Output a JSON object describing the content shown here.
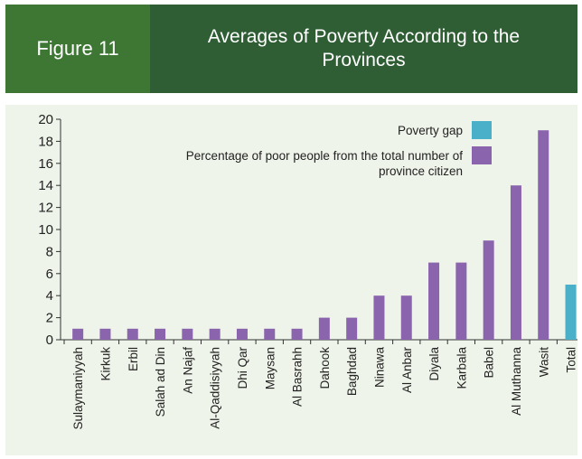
{
  "header": {
    "figure_label": "Figure 11",
    "title": "Averages of Poverty According to the Provinces"
  },
  "colors": {
    "label_bg": "#3e7733",
    "title_bg": "#2f5e35",
    "panel_bg": "#eef4e9",
    "poor_series": "#8b64ae",
    "gap_series": "#4aafc8"
  },
  "chart_data": {
    "type": "bar",
    "title": "Averages of Poverty According to the Provinces",
    "xlabel": "",
    "ylabel": "",
    "ylim": [
      0,
      20
    ],
    "yticks": [
      0,
      2,
      4,
      6,
      8,
      10,
      12,
      14,
      16,
      18,
      20
    ],
    "grid": false,
    "legend_position": "top-right",
    "categories": [
      "Sulaymaniyyah",
      "Kirkuk",
      "Erbil",
      "Salah ad Din",
      "An Najaf",
      "Al-Qaddisiyyah",
      "Dhi Qar",
      "Maysan",
      "Al Basrahh",
      "Dahook",
      "Baghdad",
      "Ninawa",
      "Al Anbar",
      "Diyala",
      "Karbala",
      "Babel",
      "Al Muthanna",
      "Wasit",
      "Total"
    ],
    "series": [
      {
        "name": "Percentage of poor people from the total number of province citizen",
        "legend_lines": [
          "Percentage of poor people from the total number of",
          "province citizen"
        ],
        "values": [
          1,
          1,
          1,
          1,
          1,
          1,
          1,
          1,
          1,
          2,
          2,
          4,
          4,
          7,
          7,
          9,
          14,
          19,
          null
        ]
      },
      {
        "name": "Poverty gap",
        "legend_lines": [
          "Poverty gap"
        ],
        "values": [
          null,
          null,
          null,
          null,
          null,
          null,
          null,
          null,
          null,
          null,
          null,
          null,
          null,
          null,
          null,
          null,
          null,
          null,
          5
        ]
      }
    ]
  }
}
